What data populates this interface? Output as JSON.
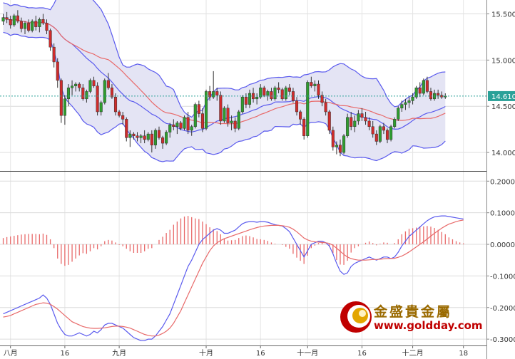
{
  "chart_data": [
    {
      "type": "candlestick",
      "panel": "price",
      "indicators": [
        "Bollinger Bands (upper, middle, lower)",
        "moving average (red)"
      ],
      "ylim": [
        13.8,
        15.65
      ],
      "yticks": [
        "15.500",
        "15.000",
        "14.500",
        "14.000"
      ],
      "ytick_values": [
        15.5,
        15.0,
        14.5,
        14.0
      ],
      "x_labels": [
        "八月",
        "16",
        "九月",
        "十月",
        "16",
        "十一月",
        "16",
        "十二月",
        "18"
      ],
      "x_label_index": [
        2,
        17,
        32,
        56,
        71,
        84,
        99,
        113,
        127
      ],
      "last_price": "14.610",
      "last_price_value": 14.61,
      "last_price_line": "dotted-teal",
      "colors": {
        "up": "#2e9e2e",
        "down": "#d12b2b",
        "bands": "#5a5aee",
        "band_fill": "#e4e4f4",
        "ma": "#e86a6a",
        "tag": "#2aa198"
      },
      "ohlc": [
        [
          15.42,
          15.5,
          15.38,
          15.46
        ],
        [
          15.46,
          15.52,
          15.4,
          15.44
        ],
        [
          15.44,
          15.48,
          15.34,
          15.38
        ],
        [
          15.38,
          15.5,
          15.36,
          15.48
        ],
        [
          15.48,
          15.54,
          15.4,
          15.42
        ],
        [
          15.42,
          15.46,
          15.3,
          15.34
        ],
        [
          15.34,
          15.42,
          15.28,
          15.4
        ],
        [
          15.4,
          15.44,
          15.3,
          15.32
        ],
        [
          15.32,
          15.44,
          15.3,
          15.42
        ],
        [
          15.42,
          15.48,
          15.32,
          15.36
        ],
        [
          15.36,
          15.46,
          15.3,
          15.44
        ],
        [
          15.44,
          15.5,
          15.38,
          15.4
        ],
        [
          15.4,
          15.44,
          15.28,
          15.32
        ],
        [
          15.32,
          15.34,
          15.1,
          15.14
        ],
        [
          15.14,
          15.18,
          14.92,
          14.98
        ],
        [
          14.98,
          15.02,
          14.7,
          14.78
        ],
        [
          14.78,
          14.8,
          14.32,
          14.4
        ],
        [
          14.4,
          14.62,
          14.3,
          14.58
        ],
        [
          14.58,
          14.74,
          14.5,
          14.7
        ],
        [
          14.7,
          14.78,
          14.62,
          14.72
        ],
        [
          14.72,
          14.76,
          14.66,
          14.74
        ],
        [
          14.74,
          14.76,
          14.66,
          14.7
        ],
        [
          14.7,
          14.74,
          14.56,
          14.58
        ],
        [
          14.58,
          14.68,
          14.54,
          14.66
        ],
        [
          14.66,
          14.8,
          14.64,
          14.78
        ],
        [
          14.78,
          14.82,
          14.7,
          14.72
        ],
        [
          14.72,
          14.76,
          14.4,
          14.44
        ],
        [
          14.44,
          14.56,
          14.4,
          14.54
        ],
        [
          14.54,
          14.8,
          14.52,
          14.78
        ],
        [
          14.78,
          14.86,
          14.68,
          14.7
        ],
        [
          14.7,
          14.74,
          14.58,
          14.6
        ],
        [
          14.6,
          14.64,
          14.4,
          14.44
        ],
        [
          14.44,
          14.46,
          14.38,
          14.4
        ],
        [
          14.4,
          14.44,
          14.3,
          14.36
        ],
        [
          14.36,
          14.38,
          14.12,
          14.16
        ],
        [
          14.16,
          14.24,
          14.06,
          14.2
        ],
        [
          14.2,
          14.22,
          14.14,
          14.18
        ],
        [
          14.18,
          14.22,
          14.12,
          14.16
        ],
        [
          14.16,
          14.2,
          14.1,
          14.18
        ],
        [
          14.18,
          14.24,
          14.1,
          14.14
        ],
        [
          14.14,
          14.22,
          14.12,
          14.2
        ],
        [
          14.2,
          14.24,
          14.0,
          14.08
        ],
        [
          14.08,
          14.26,
          14.04,
          14.24
        ],
        [
          14.24,
          14.28,
          14.14,
          14.16
        ],
        [
          14.16,
          14.18,
          14.04,
          14.1
        ],
        [
          14.1,
          14.24,
          14.08,
          14.22
        ],
        [
          14.22,
          14.32,
          14.16,
          14.3
        ],
        [
          14.3,
          14.36,
          14.24,
          14.28
        ],
        [
          14.28,
          14.34,
          14.2,
          14.32
        ],
        [
          14.32,
          14.34,
          14.24,
          14.26
        ],
        [
          14.26,
          14.4,
          14.24,
          14.38
        ],
        [
          14.38,
          14.44,
          14.2,
          14.24
        ],
        [
          14.24,
          14.3,
          14.18,
          14.28
        ],
        [
          14.28,
          14.54,
          14.26,
          14.52
        ],
        [
          14.52,
          14.56,
          14.38,
          14.42
        ],
        [
          14.42,
          14.48,
          14.22,
          14.26
        ],
        [
          14.26,
          14.68,
          14.24,
          14.66
        ],
        [
          14.66,
          14.72,
          14.56,
          14.6
        ],
        [
          14.6,
          14.88,
          14.58,
          14.66
        ],
        [
          14.66,
          14.7,
          14.56,
          14.62
        ],
        [
          14.62,
          14.66,
          14.3,
          14.34
        ],
        [
          14.34,
          14.5,
          14.32,
          14.48
        ],
        [
          14.48,
          14.52,
          14.28,
          14.32
        ],
        [
          14.32,
          14.4,
          14.24,
          14.34
        ],
        [
          14.34,
          14.38,
          14.22,
          14.26
        ],
        [
          14.26,
          14.46,
          14.24,
          14.44
        ],
        [
          14.44,
          14.62,
          14.42,
          14.6
        ],
        [
          14.6,
          14.64,
          14.48,
          14.52
        ],
        [
          14.52,
          14.68,
          14.48,
          14.64
        ],
        [
          14.64,
          14.7,
          14.54,
          14.58
        ],
        [
          14.58,
          14.64,
          14.52,
          14.6
        ],
        [
          14.6,
          14.74,
          14.58,
          14.7
        ],
        [
          14.7,
          14.72,
          14.6,
          14.62
        ],
        [
          14.62,
          14.68,
          14.56,
          14.66
        ],
        [
          14.66,
          14.7,
          14.56,
          14.58
        ],
        [
          14.58,
          14.72,
          14.56,
          14.7
        ],
        [
          14.7,
          14.76,
          14.64,
          14.68
        ],
        [
          14.68,
          14.7,
          14.56,
          14.58
        ],
        [
          14.58,
          14.72,
          14.56,
          14.7
        ],
        [
          14.7,
          14.74,
          14.62,
          14.66
        ],
        [
          14.66,
          14.7,
          14.54,
          14.56
        ],
        [
          14.56,
          14.6,
          14.4,
          14.44
        ],
        [
          14.44,
          14.46,
          14.3,
          14.36
        ],
        [
          14.36,
          14.38,
          14.14,
          14.18
        ],
        [
          14.18,
          14.78,
          14.16,
          14.76
        ],
        [
          14.76,
          14.82,
          14.7,
          14.72
        ],
        [
          14.72,
          14.78,
          14.66,
          14.74
        ],
        [
          14.74,
          14.78,
          14.58,
          14.62
        ],
        [
          14.62,
          14.66,
          14.5,
          14.54
        ],
        [
          14.54,
          14.58,
          14.4,
          14.44
        ],
        [
          14.44,
          14.46,
          14.2,
          14.24
        ],
        [
          14.24,
          14.28,
          14.02,
          14.06
        ],
        [
          14.06,
          14.12,
          13.98,
          14.08
        ],
        [
          14.08,
          14.14,
          13.96,
          14.0
        ],
        [
          14.0,
          14.2,
          13.98,
          14.18
        ],
        [
          14.18,
          14.42,
          14.16,
          14.38
        ],
        [
          14.38,
          14.44,
          14.24,
          14.28
        ],
        [
          14.28,
          14.4,
          14.22,
          14.34
        ],
        [
          14.34,
          14.46,
          14.3,
          14.42
        ],
        [
          14.42,
          14.48,
          14.34,
          14.38
        ],
        [
          14.38,
          14.44,
          14.3,
          14.34
        ],
        [
          14.34,
          14.38,
          14.24,
          14.28
        ],
        [
          14.28,
          14.34,
          14.16,
          14.2
        ],
        [
          14.2,
          14.24,
          14.08,
          14.12
        ],
        [
          14.12,
          14.3,
          14.1,
          14.28
        ],
        [
          14.28,
          14.32,
          14.2,
          14.24
        ],
        [
          14.24,
          14.26,
          14.1,
          14.14
        ],
        [
          14.14,
          14.3,
          14.12,
          14.28
        ],
        [
          14.28,
          14.38,
          14.26,
          14.36
        ],
        [
          14.36,
          14.5,
          14.34,
          14.48
        ],
        [
          14.48,
          14.56,
          14.44,
          14.52
        ],
        [
          14.52,
          14.58,
          14.46,
          14.54
        ],
        [
          14.54,
          14.6,
          14.48,
          14.56
        ],
        [
          14.56,
          14.64,
          14.52,
          14.6
        ],
        [
          14.6,
          14.72,
          14.58,
          14.7
        ],
        [
          14.7,
          14.76,
          14.6,
          14.64
        ],
        [
          14.64,
          14.8,
          14.62,
          14.78
        ],
        [
          14.78,
          14.82,
          14.64,
          14.66
        ],
        [
          14.66,
          14.7,
          14.56,
          14.58
        ],
        [
          14.58,
          14.68,
          14.56,
          14.64
        ],
        [
          14.64,
          14.68,
          14.58,
          14.62
        ],
        [
          14.62,
          14.66,
          14.58,
          14.6
        ],
        [
          14.6,
          14.64,
          14.58,
          14.61
        ]
      ]
    },
    {
      "type": "line",
      "panel": "oscillator",
      "ylim": [
        -0.32,
        0.23
      ],
      "yticks": [
        "0.2000",
        "0.1000",
        "0.0000",
        "-0.1000",
        "-0.2000",
        "-0.3000"
      ],
      "ytick_values": [
        0.2,
        0.1,
        0.0,
        -0.1,
        -0.2,
        -0.3
      ],
      "series": [
        {
          "name": "",
          "color": "#5a5aee",
          "values": [
            -0.22,
            -0.215,
            -0.21,
            -0.205,
            -0.2,
            -0.195,
            -0.19,
            -0.185,
            -0.18,
            -0.175,
            -0.17,
            -0.16,
            -0.17,
            -0.19,
            -0.22,
            -0.25,
            -0.27,
            -0.285,
            -0.29,
            -0.29,
            -0.285,
            -0.28,
            -0.285,
            -0.29,
            -0.285,
            -0.275,
            -0.28,
            -0.27,
            -0.255,
            -0.25,
            -0.25,
            -0.255,
            -0.26,
            -0.265,
            -0.275,
            -0.285,
            -0.295,
            -0.3,
            -0.305,
            -0.305,
            -0.3,
            -0.3,
            -0.29,
            -0.275,
            -0.26,
            -0.24,
            -0.22,
            -0.19,
            -0.16,
            -0.13,
            -0.1,
            -0.07,
            -0.05,
            -0.025,
            0.0,
            0.015,
            0.025,
            0.035,
            0.045,
            0.05,
            0.045,
            0.035,
            0.035,
            0.04,
            0.045,
            0.055,
            0.065,
            0.07,
            0.072,
            0.072,
            0.07,
            0.072,
            0.072,
            0.07,
            0.066,
            0.062,
            0.06,
            0.058,
            0.05,
            0.04,
            0.02,
            0.0,
            -0.02,
            -0.04,
            -0.02,
            0.0,
            0.005,
            0.01,
            0.01,
            0.005,
            -0.005,
            -0.03,
            -0.06,
            -0.085,
            -0.095,
            -0.09,
            -0.07,
            -0.06,
            -0.055,
            -0.05,
            -0.045,
            -0.04,
            -0.045,
            -0.05,
            -0.045,
            -0.04,
            -0.04,
            -0.045,
            -0.04,
            -0.025,
            -0.005,
            0.01,
            0.025,
            0.035,
            0.045,
            0.055,
            0.065,
            0.075,
            0.082,
            0.087,
            0.089,
            0.09,
            0.09,
            0.088,
            0.086,
            0.084,
            0.082,
            0.08
          ]
        },
        {
          "name": "",
          "color": "#e86a6a",
          "values": [
            -0.23,
            -0.228,
            -0.225,
            -0.22,
            -0.215,
            -0.21,
            -0.205,
            -0.2,
            -0.195,
            -0.19,
            -0.188,
            -0.185,
            -0.186,
            -0.19,
            -0.197,
            -0.205,
            -0.215,
            -0.225,
            -0.235,
            -0.245,
            -0.25,
            -0.255,
            -0.26,
            -0.263,
            -0.265,
            -0.266,
            -0.266,
            -0.265,
            -0.264,
            -0.262,
            -0.26,
            -0.259,
            -0.259,
            -0.26,
            -0.262,
            -0.265,
            -0.27,
            -0.275,
            -0.28,
            -0.285,
            -0.288,
            -0.29,
            -0.29,
            -0.287,
            -0.282,
            -0.275,
            -0.265,
            -0.25,
            -0.23,
            -0.21,
            -0.185,
            -0.16,
            -0.135,
            -0.11,
            -0.085,
            -0.06,
            -0.04,
            -0.02,
            -0.005,
            0.005,
            0.012,
            0.018,
            0.022,
            0.026,
            0.03,
            0.034,
            0.038,
            0.042,
            0.046,
            0.05,
            0.053,
            0.056,
            0.058,
            0.059,
            0.06,
            0.06,
            0.06,
            0.059,
            0.057,
            0.054,
            0.048,
            0.04,
            0.03,
            0.02,
            0.014,
            0.01,
            0.008,
            0.007,
            0.006,
            0.005,
            0.003,
            -0.003,
            -0.012,
            -0.022,
            -0.032,
            -0.04,
            -0.045,
            -0.048,
            -0.05,
            -0.05,
            -0.05,
            -0.049,
            -0.048,
            -0.048,
            -0.047,
            -0.046,
            -0.045,
            -0.045,
            -0.044,
            -0.041,
            -0.037,
            -0.031,
            -0.024,
            -0.016,
            -0.008,
            0.0,
            0.008,
            0.017,
            0.026,
            0.035,
            0.043,
            0.051,
            0.058,
            0.064,
            0.068,
            0.072,
            0.075,
            0.077
          ]
        }
      ],
      "histogram": {
        "color": "#e86a6a",
        "values": [
          0.02,
          0.023,
          0.025,
          0.027,
          0.029,
          0.031,
          0.032,
          0.033,
          0.033,
          0.033,
          0.032,
          0.034,
          0.03,
          0.016,
          -0.012,
          -0.045,
          -0.062,
          -0.068,
          -0.065,
          -0.055,
          -0.045,
          -0.035,
          -0.028,
          -0.03,
          -0.022,
          -0.012,
          -0.016,
          -0.006,
          0.01,
          0.014,
          0.012,
          0.006,
          -0.002,
          -0.006,
          -0.014,
          -0.022,
          -0.027,
          -0.027,
          -0.027,
          -0.022,
          -0.014,
          -0.012,
          0.0,
          0.014,
          0.024,
          0.036,
          0.046,
          0.062,
          0.072,
          0.082,
          0.088,
          0.09,
          0.086,
          0.082,
          0.08,
          0.072,
          0.064,
          0.054,
          0.048,
          0.042,
          0.032,
          0.018,
          0.012,
          0.013,
          0.014,
          0.02,
          0.026,
          0.028,
          0.026,
          0.022,
          0.017,
          0.016,
          0.014,
          0.011,
          0.006,
          0.002,
          0.0,
          -0.002,
          -0.008,
          -0.014,
          -0.03,
          -0.042,
          -0.052,
          -0.062,
          -0.036,
          -0.012,
          -0.004,
          0.004,
          0.005,
          0.0,
          -0.008,
          -0.028,
          -0.05,
          -0.064,
          -0.065,
          -0.052,
          -0.026,
          -0.012,
          -0.006,
          0.0,
          0.005,
          0.009,
          0.004,
          -0.003,
          0.002,
          0.006,
          0.005,
          0.0,
          0.004,
          0.016,
          0.032,
          0.041,
          0.049,
          0.051,
          0.053,
          0.055,
          0.057,
          0.058,
          0.056,
          0.052,
          0.046,
          0.039,
          0.032,
          0.022,
          0.016,
          0.01,
          0.006,
          0.003
        ]
      }
    }
  ],
  "watermark": {
    "company_cn": "金盛貴金屬",
    "url": "www.goldday.com"
  }
}
